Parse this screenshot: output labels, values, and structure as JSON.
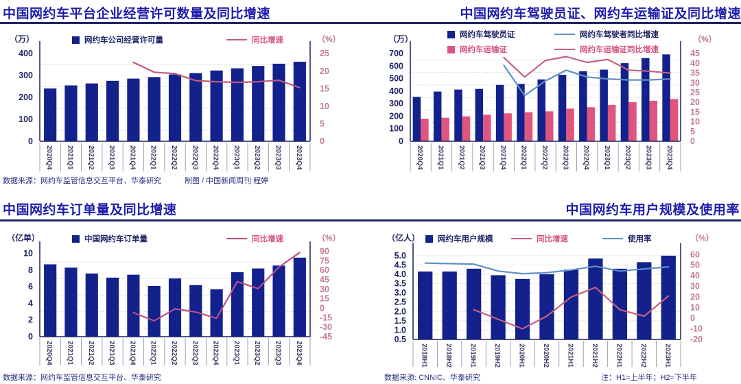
{
  "colors": {
    "bar_navy": "#12218c",
    "bar_pink": "#e0557f",
    "line_pink": "#c05a80",
    "line_blue": "#6090c8",
    "title_blue": "#1c1cac",
    "divider_navy": "#1d2766",
    "left_tick": "#1f2566",
    "right_tick": "#c27b93",
    "x_label": "#3d4166"
  },
  "sections": {
    "top_left": {
      "title": "中国网约车平台企业经营许可数量及同比增速",
      "source": "数据来源：网约车监管信息交互平台、华泰研究",
      "credit": "制图 / 中国新闻周刊  程婷"
    },
    "top_right": {
      "title": "中国网约车驾驶员证、网约车运输证及同比增速"
    },
    "bottom_left": {
      "title": "中国网约车订单量及同比增速",
      "source": "数据来源：网约车监管信息交互平台、华泰研究"
    },
    "bottom_right": {
      "title": "中国网约车用户规模及使用率",
      "source": "数据来源: CNNIC、华泰研究",
      "note": "注：H1=上半年；H2=下半年"
    }
  },
  "chart_data": [
    {
      "id": "platform-license",
      "type": "bar+line",
      "title": "中国网约车平台企业经营许可数量及同比增速",
      "categories": [
        "2020Q4",
        "2021Q1",
        "2021Q2",
        "2021Q3",
        "2021Q4",
        "2022Q1",
        "2022Q2",
        "2022Q3",
        "2022Q4",
        "2023Q1",
        "2023Q2",
        "2023Q3",
        "2023Q4"
      ],
      "left_axis": {
        "unit": "（万）",
        "ticks": [
          "0",
          "100",
          "200",
          "300",
          "400"
        ],
        "lim": [
          0,
          432
        ]
      },
      "right_axis": {
        "unit": "（%）",
        "ticks": [
          "0",
          "5",
          "10",
          "15",
          "20",
          "25"
        ],
        "lim": [
          0,
          27
        ]
      },
      "bar_series": [
        {
          "name": "网约车公司经营许可量",
          "color": "#12218c",
          "label_color": "#1f2566",
          "values": [
            241,
            255,
            264,
            276,
            286,
            293,
            305,
            311,
            323,
            333,
            344,
            354,
            363
          ]
        }
      ],
      "line_series": [
        {
          "name": "同比增速",
          "color": "#c05a80",
          "label_color": "#d5537e",
          "values": [
            null,
            null,
            null,
            null,
            22.5,
            19.7,
            19.3,
            17.3,
            17.0,
            16.8,
            17.0,
            17.4,
            15.3
          ]
        }
      ]
    },
    {
      "id": "driver-transport-certs",
      "type": "bar+line",
      "title": "中国网约车驾驶员证、网约车运输证及同比增速",
      "categories": [
        "2020Q4",
        "2021Q1",
        "2021Q2",
        "2021Q3",
        "2021Q4",
        "2022Q1",
        "2022Q2",
        "2022Q3",
        "2022Q4",
        "2023Q1",
        "2023Q2",
        "2023Q3",
        "2023Q4"
      ],
      "left_axis": {
        "unit": "（万）",
        "ticks": [
          "0",
          "100",
          "200",
          "300",
          "400",
          "500",
          "600",
          "700"
        ],
        "lim": [
          0,
          756
        ]
      },
      "right_axis": {
        "unit": "（%）",
        "ticks": [
          "0",
          "5",
          "10",
          "15",
          "20",
          "25",
          "30",
          "35",
          "40",
          "45"
        ],
        "lim": [
          0,
          48.6
        ]
      },
      "bar_series": [
        {
          "name": "网约车驾驶员证",
          "color": "#12218c",
          "label_color": "#1f2566",
          "values": [
            355,
            397,
            413,
            418,
            450,
            458,
            494,
            531,
            559,
            572,
            624,
            665,
            694
          ]
        },
        {
          "name": "网约车运输证",
          "color": "#e0557f",
          "label_color": "#d5537e",
          "values": [
            180,
            188,
            199,
            212,
            223,
            232,
            239,
            261,
            272,
            291,
            312,
            324,
            337
          ]
        }
      ],
      "line_series": [
        {
          "name": "网约车驾驶者同比增速",
          "color": "#6090c8",
          "label_color": "#1f2566",
          "values": [
            null,
            null,
            null,
            null,
            39,
            23.5,
            31,
            36.5,
            33,
            32,
            31.5,
            31.5,
            32
          ]
        },
        {
          "name": "网约车运输证同比增速",
          "color": "#c4607f",
          "label_color": "#d5537e",
          "values": [
            null,
            null,
            null,
            null,
            43,
            33,
            41.5,
            43.5,
            40.5,
            42,
            36.5,
            36,
            35
          ]
        }
      ]
    },
    {
      "id": "order-volume",
      "type": "bar+line",
      "title": "中国网约车订单量及同比增速",
      "categories": [
        "2020Q4",
        "2021Q1",
        "2021Q2",
        "2021Q3",
        "2021Q4",
        "2022Q1",
        "2022Q2",
        "2022Q3",
        "2022Q4",
        "2023Q1",
        "2023Q2",
        "2023Q3",
        "2023Q4"
      ],
      "left_axis": {
        "unit": "（亿单）",
        "ticks": [
          "0",
          "2",
          "4",
          "6",
          "8",
          "10"
        ],
        "lim": [
          0,
          10.8
        ]
      },
      "right_axis": {
        "unit": "（%）",
        "ticks": [
          "-45",
          "-30",
          "-15",
          "0",
          "15",
          "30",
          "45",
          "60",
          "75",
          "90"
        ],
        "lim": [
          -45,
          97
        ]
      },
      "bar_series": [
        {
          "name": "中国网约车订单量",
          "color": "#12218c",
          "label_color": "#1f2566",
          "values": [
            8.7,
            8.3,
            7.6,
            7.1,
            7.45,
            6.1,
            7.0,
            6.2,
            5.7,
            7.75,
            8.2,
            8.55,
            9.5
          ]
        }
      ],
      "line_series": [
        {
          "name": "同比增速",
          "color": "#bb4f86",
          "label_color": "#d5537e",
          "values": [
            null,
            null,
            null,
            null,
            -7,
            -20,
            -1,
            -6,
            -16,
            42,
            31,
            65,
            88
          ]
        }
      ]
    },
    {
      "id": "user-scale",
      "type": "bar+line",
      "title": "中国网约车用户规模及使用率",
      "categories": [
        "2018H1",
        "2018H2",
        "2019H1",
        "2019H2",
        "2020H1",
        "2020H2",
        "2021H1",
        "2021H2",
        "2022H1",
        "2022H2",
        "2023H1"
      ],
      "left_axis": {
        "unit": "（亿人）",
        "ticks": [
          "0.5",
          "1.0",
          "1.5",
          "2.0",
          "2.5",
          "3.0",
          "3.5",
          "4.0",
          "4.5",
          "5.0"
        ],
        "lim": [
          0.5,
          5.4
        ]
      },
      "right_axis": {
        "unit": "（%）",
        "ticks": [
          "-20",
          "-10",
          "0",
          "10",
          "20",
          "30",
          "40",
          "50",
          "60"
        ],
        "lim": [
          -20,
          66
        ]
      },
      "bar_series": [
        {
          "name": "网约车用户规模",
          "color": "#12218c",
          "label_color": "#1f2566",
          "values": [
            4.15,
            4.15,
            4.3,
            3.95,
            3.75,
            4.0,
            4.25,
            4.85,
            4.3,
            4.65,
            5.0
          ]
        }
      ],
      "line_series": [
        {
          "name": "同比增速",
          "color": "#c4607f",
          "label_color": "#d5537e",
          "values": [
            null,
            null,
            8,
            -1,
            -10,
            2,
            20,
            29,
            8,
            2,
            21
          ]
        },
        {
          "name": "使用率",
          "color": "#6090c8",
          "label_color": "#1f2566",
          "values": [
            52,
            51.5,
            51,
            44.5,
            42,
            43,
            45.5,
            49,
            44.5,
            46.5,
            48.5
          ]
        }
      ]
    }
  ]
}
